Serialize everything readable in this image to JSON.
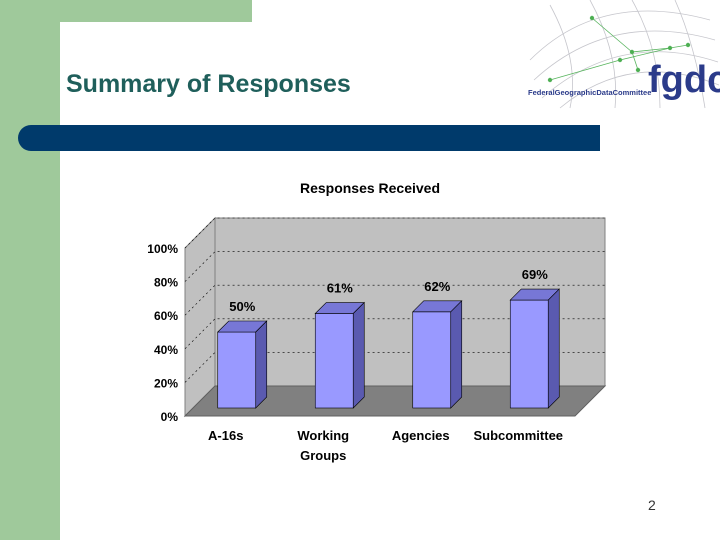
{
  "slide": {
    "title": "Summary of Responses",
    "page_number": "2"
  },
  "logo": {
    "mark": "fgdc",
    "text": "FederalGeographicDataCommittee"
  },
  "colors": {
    "band_green": "#9fc99b",
    "rule_navy": "#003a6b",
    "title_teal": "#1f5f5b",
    "bar_front": "#9999ff",
    "bar_side": "#5a5ab0",
    "bar_top": "#7777d6",
    "wall": "#c0c0c0",
    "floor": "#808080"
  },
  "chart_data": {
    "type": "bar",
    "title": "Responses Received",
    "categories": [
      "A-16s",
      "Working Groups",
      "Agencies",
      "Subcommittee"
    ],
    "category_lines": [
      [
        "A-16s"
      ],
      [
        "Working",
        "Groups"
      ],
      [
        "Agencies"
      ],
      [
        "Subcommittee"
      ]
    ],
    "values": [
      50,
      61,
      62,
      69
    ],
    "data_labels": [
      "50%",
      "61%",
      "62%",
      "69%"
    ],
    "yticks": [
      "0%",
      "20%",
      "40%",
      "60%",
      "80%",
      "100%"
    ],
    "ylim": [
      0,
      100
    ],
    "xlabel": "",
    "ylabel": "",
    "legend": "none",
    "three_d": true
  }
}
